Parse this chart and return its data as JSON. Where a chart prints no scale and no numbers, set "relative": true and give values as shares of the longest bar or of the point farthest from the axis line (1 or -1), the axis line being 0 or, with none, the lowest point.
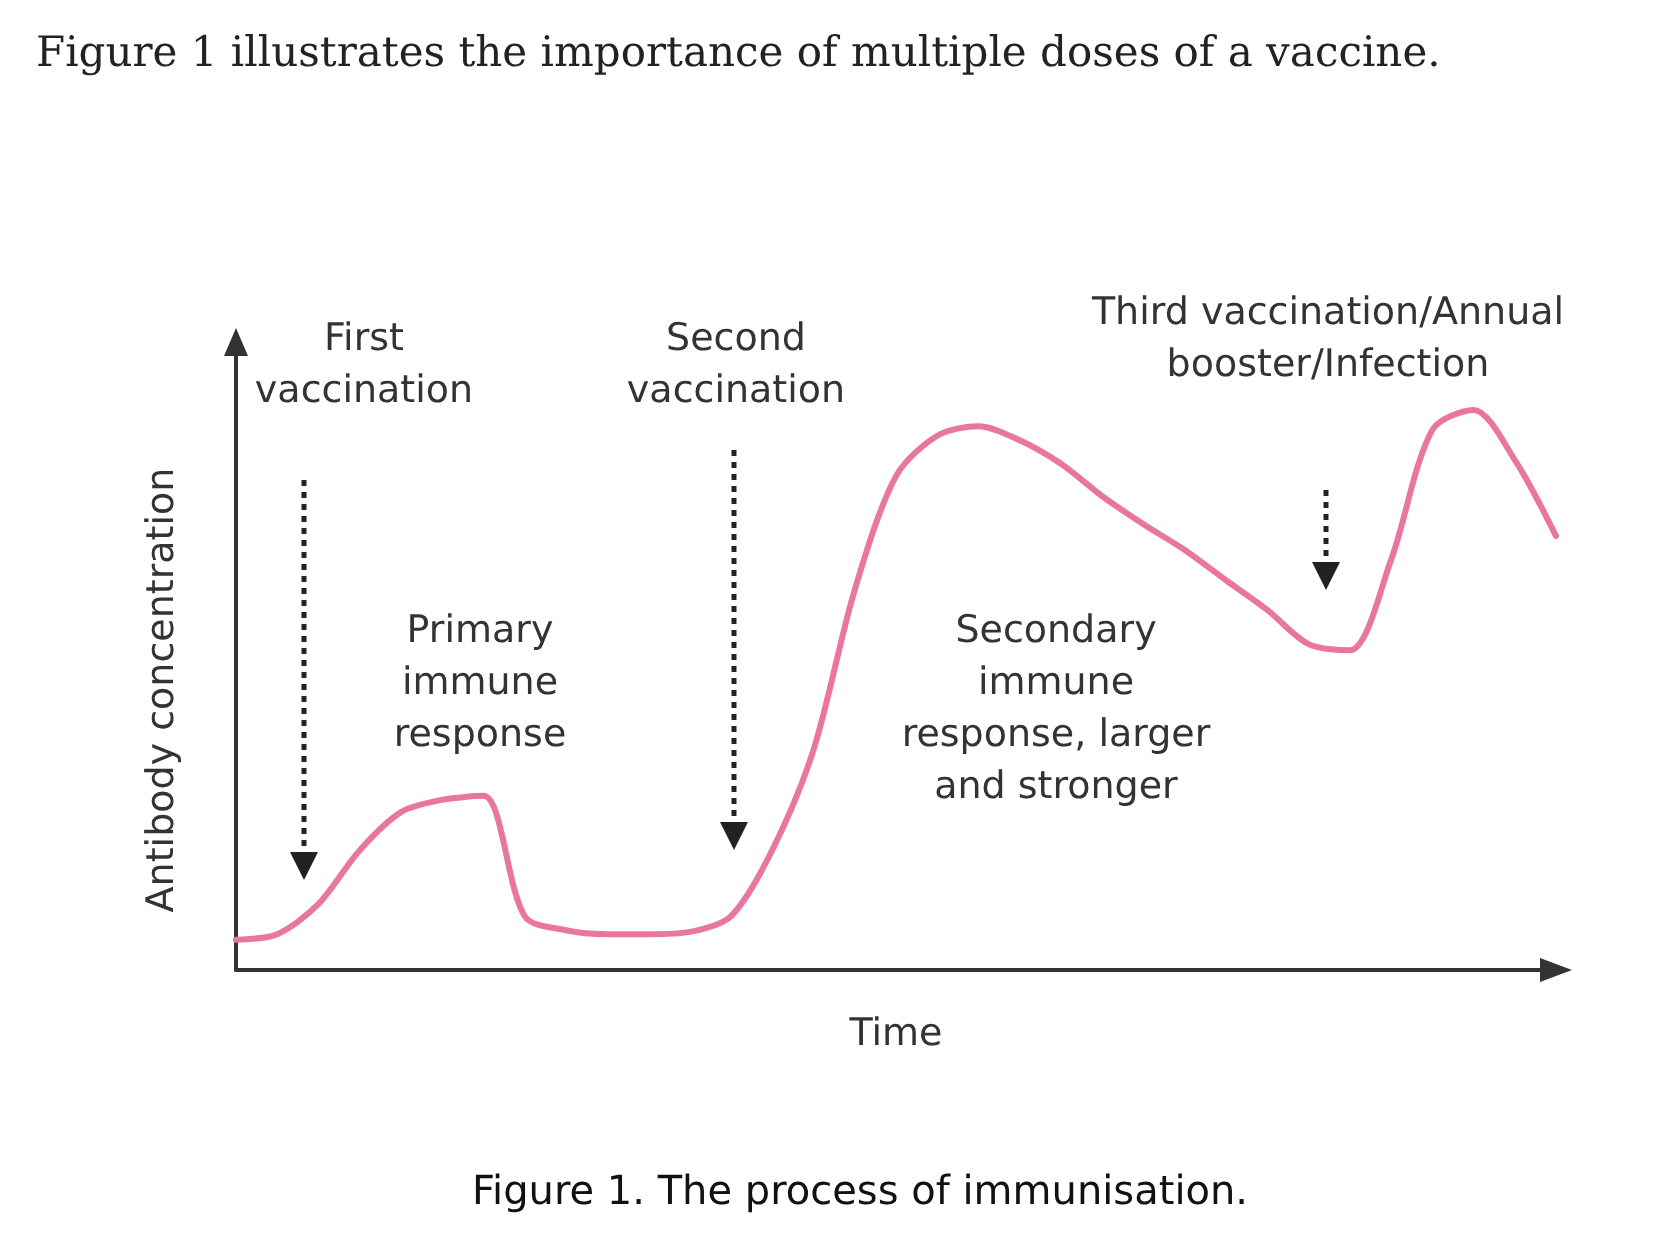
{
  "chart_data": {
    "type": "line",
    "relative": true,
    "title": "Figure 1 illustrates the importance of multiple doses of a vaccine.",
    "xlabel": "Time",
    "ylabel": "Antibody concentration",
    "annotations": [
      "First\nvaccination",
      "Second\nvaccination",
      "Third vaccination/Annual\nbooster/Infection",
      "Primary\nimmune\nresponse",
      "Secondary\nimmune\nresponse, larger\nand stronger",
      "Figure 1. The process of immunisation."
    ],
    "categories": [
      null,
      null,
      null,
      null,
      null,
      null,
      null,
      null,
      null,
      null,
      null,
      null,
      null,
      null,
      null,
      null,
      null,
      null,
      null,
      null,
      null,
      null,
      null,
      null,
      null,
      null,
      null,
      null,
      null,
      null,
      null,
      null,
      null
    ],
    "series": [
      {
        "color": "#e8769f",
        "values": [
          0.054,
          0.064,
          0.118,
          0.214,
          0.282,
          0.304,
          0.311,
          0.096,
          0.071,
          0.064,
          0.064,
          0.068,
          0.096,
          0.214,
          0.393,
          0.679,
          0.882,
          0.954,
          0.971,
          0.946,
          0.904,
          0.846,
          0.796,
          0.75,
          0.696,
          0.643,
          0.582,
          0.571,
          0.732,
          0.964,
          1.0,
          0.911,
          0.775
        ]
      }
    ],
    "grid": false,
    "marker": "none",
    "line_style": "solid"
  }
}
